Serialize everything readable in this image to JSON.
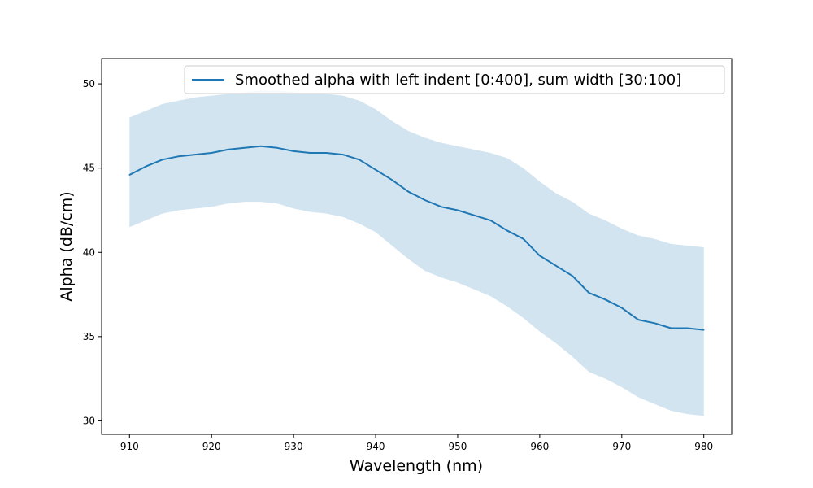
{
  "chart_data": {
    "type": "line",
    "xlabel": "Wavelength (nm)",
    "ylabel": "Alpha (dB/cm)",
    "xlim": [
      906.6,
      983.4
    ],
    "ylim": [
      29.2,
      51.5
    ],
    "xticks": [
      910,
      920,
      930,
      940,
      950,
      960,
      970,
      980
    ],
    "yticks": [
      30,
      35,
      40,
      45,
      50
    ],
    "grid": false,
    "legend_position": "top-right",
    "colors": {
      "line": "#1f77b4",
      "band": "#1f77b4",
      "band_opacity": 0.2
    },
    "series": [
      {
        "name": "Smoothed alpha with left indent [0:400], sum width [30:100]",
        "x": [
          910,
          912,
          914,
          916,
          918,
          920,
          922,
          924,
          926,
          928,
          930,
          932,
          934,
          936,
          938,
          940,
          942,
          944,
          946,
          948,
          950,
          952,
          954,
          956,
          958,
          960,
          962,
          964,
          966,
          968,
          970,
          972,
          974,
          976,
          978,
          980
        ],
        "y": [
          44.6,
          45.1,
          45.5,
          45.7,
          45.8,
          45.9,
          46.1,
          46.2,
          46.3,
          46.2,
          46.0,
          45.9,
          45.9,
          45.8,
          45.5,
          44.9,
          44.3,
          43.6,
          43.1,
          42.7,
          42.5,
          42.2,
          41.9,
          41.3,
          40.8,
          39.8,
          39.2,
          38.6,
          37.6,
          37.2,
          36.7,
          36.0,
          35.8,
          35.5,
          35.5,
          35.4
        ],
        "band_upper": [
          48.0,
          48.4,
          48.8,
          49.0,
          49.2,
          49.3,
          49.4,
          49.5,
          49.6,
          49.6,
          49.5,
          49.4,
          49.4,
          49.3,
          49.0,
          48.5,
          47.8,
          47.2,
          46.8,
          46.5,
          46.3,
          46.1,
          45.9,
          45.6,
          45.0,
          44.2,
          43.5,
          43.0,
          42.3,
          41.9,
          41.4,
          41.0,
          40.8,
          40.5,
          40.4,
          40.3
        ],
        "band_lower": [
          41.5,
          41.9,
          42.3,
          42.5,
          42.6,
          42.7,
          42.9,
          43.0,
          43.0,
          42.9,
          42.6,
          42.4,
          42.3,
          42.1,
          41.7,
          41.2,
          40.4,
          39.6,
          38.9,
          38.5,
          38.2,
          37.8,
          37.4,
          36.8,
          36.1,
          35.3,
          34.6,
          33.8,
          32.9,
          32.5,
          32.0,
          31.4,
          31.0,
          30.6,
          30.4,
          30.3
        ]
      }
    ]
  }
}
